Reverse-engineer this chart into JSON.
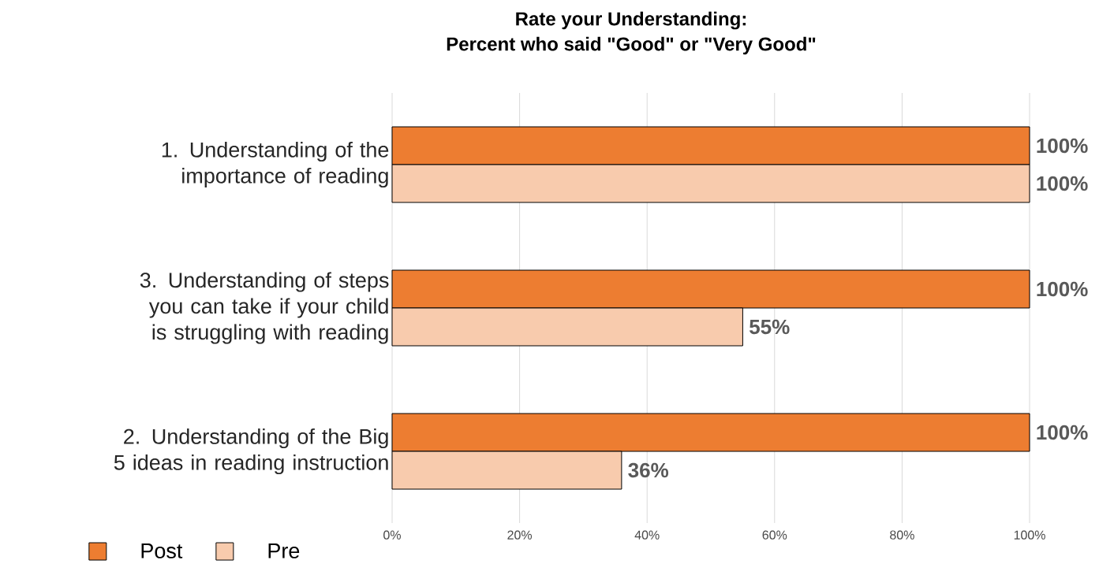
{
  "chart_data": {
    "type": "bar",
    "orientation": "horizontal",
    "title": "Rate your Understanding:",
    "subtitle": "Percent who said \"Good\" or \"Very Good\"",
    "categories": [
      "1. Understanding of the importance of reading",
      "3. Understanding of steps you can take if your child is struggling with reading",
      "2. Understanding of the Big 5 ideas in reading instruction"
    ],
    "series": [
      {
        "name": "Post",
        "color": "#ed7d31",
        "values": [
          100,
          100,
          100
        ],
        "value_labels": [
          "100%",
          "100%",
          "100%"
        ]
      },
      {
        "name": "Pre",
        "color": "#f8cbad",
        "values": [
          100,
          55,
          36
        ],
        "value_labels": [
          "100%",
          "55%",
          "36%"
        ]
      }
    ],
    "xlim": [
      0,
      100
    ],
    "xticks": [
      {
        "value": 0,
        "label": "0%"
      },
      {
        "value": 20,
        "label": "20%"
      },
      {
        "value": 40,
        "label": "40%"
      },
      {
        "value": 60,
        "label": "60%"
      },
      {
        "value": 80,
        "label": "80%"
      },
      {
        "value": 100,
        "label": "100%"
      }
    ],
    "grid": "x",
    "legend": "bottom left"
  }
}
